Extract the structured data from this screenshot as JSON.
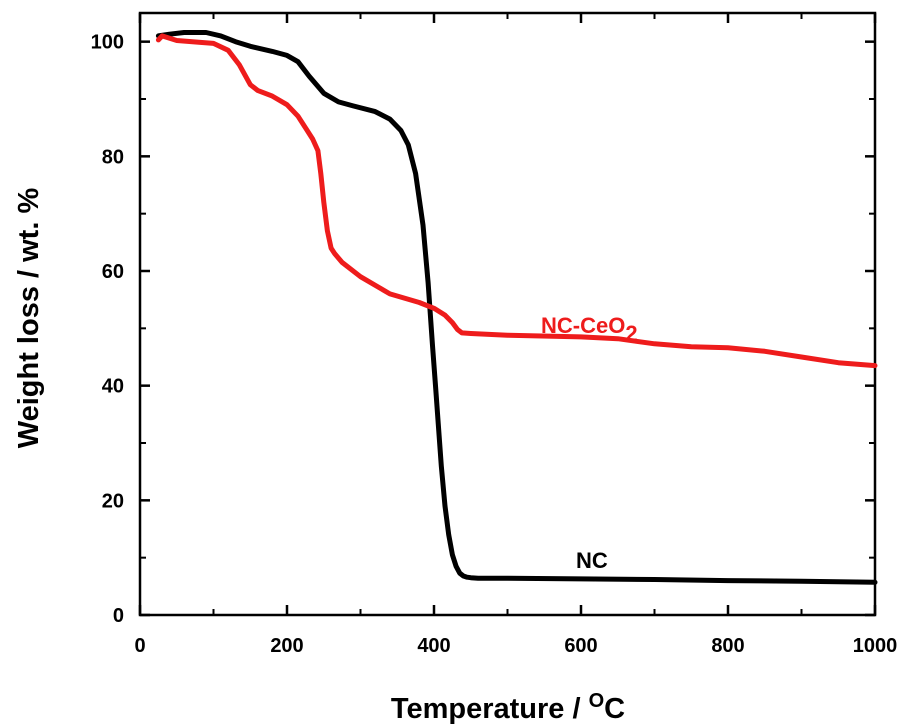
{
  "chart_data": {
    "type": "line",
    "title": "",
    "xlabel": "Temperature / ",
    "xlabel_unit_super": "O",
    "xlabel_unit": "C",
    "ylabel": "Weight loss / wt. %",
    "xlim": [
      0,
      1000
    ],
    "ylim": [
      0,
      105
    ],
    "xticks": [
      0,
      200,
      400,
      600,
      800,
      1000
    ],
    "yticks": [
      0,
      20,
      40,
      60,
      80,
      100
    ],
    "grid": false,
    "series": [
      {
        "name": "NC",
        "label": "NC",
        "label_sub": "",
        "color": "#000000",
        "x": [
          25,
          40,
          60,
          90,
          110,
          130,
          150,
          180,
          200,
          215,
          230,
          250,
          270,
          290,
          320,
          340,
          355,
          365,
          375,
          385,
          392,
          398,
          402,
          406,
          410,
          415,
          420,
          425,
          430,
          435,
          440,
          445,
          450,
          460,
          500,
          600,
          700,
          800,
          900,
          1000
        ],
        "y": [
          101,
          101.3,
          101.6,
          101.6,
          101,
          100,
          99.2,
          98.3,
          97.6,
          96.5,
          94,
          91,
          89.5,
          88.8,
          87.8,
          86.5,
          84.5,
          82,
          77,
          68,
          58,
          47,
          40,
          33,
          26,
          19,
          14,
          10.5,
          8.5,
          7.3,
          6.8,
          6.6,
          6.5,
          6.4,
          6.4,
          6.3,
          6.2,
          6.0,
          5.9,
          5.7
        ]
      },
      {
        "name": "NC-CeO2",
        "label": "NC-CeO",
        "label_sub": "2",
        "color": "#ee1c1c",
        "x": [
          25,
          30,
          50,
          80,
          100,
          120,
          135,
          150,
          160,
          180,
          200,
          215,
          225,
          235,
          242,
          246,
          250,
          255,
          260,
          265,
          275,
          300,
          340,
          380,
          400,
          415,
          425,
          432,
          438,
          450,
          500,
          600,
          650,
          700,
          750,
          800,
          850,
          900,
          950,
          1000
        ],
        "y": [
          100.3,
          101,
          100.2,
          99.9,
          99.7,
          98.5,
          96,
          92.5,
          91.5,
          90.5,
          89,
          87,
          85,
          83,
          81,
          77,
          72,
          67,
          64,
          63,
          61.5,
          59,
          56,
          54.5,
          53.5,
          52.3,
          51,
          49.8,
          49.2,
          49.1,
          48.8,
          48.5,
          48.2,
          47.3,
          46.8,
          46.6,
          46,
          45,
          44,
          43.5
        ]
      }
    ]
  }
}
